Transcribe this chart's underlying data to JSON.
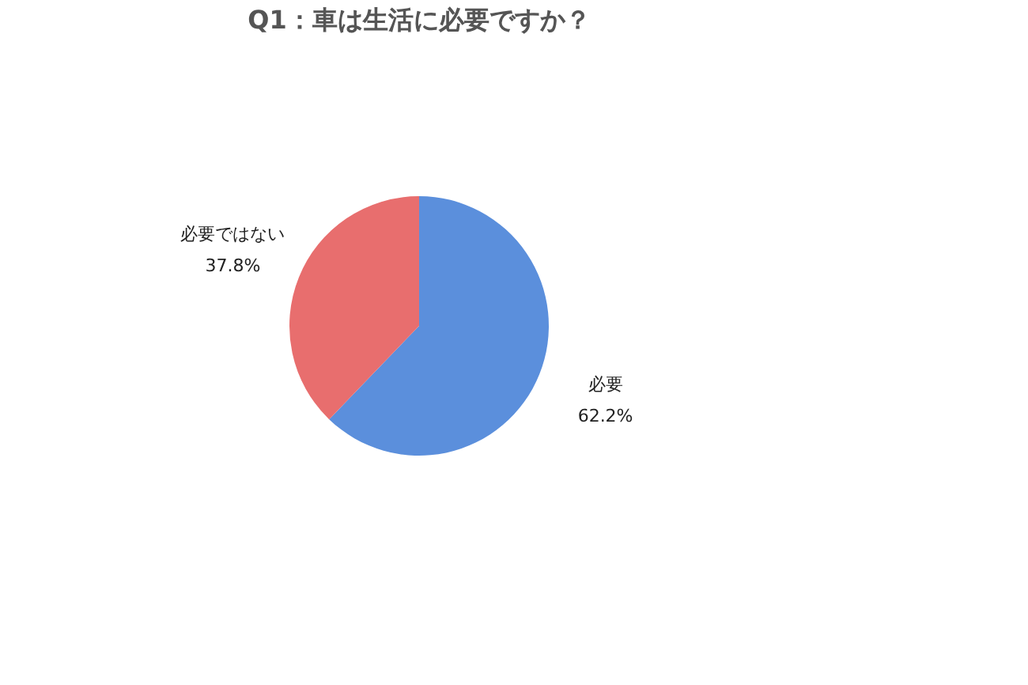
{
  "chart_data": {
    "type": "pie",
    "title": "Q1：車は生活に必要ですか？",
    "categories": [
      "必要",
      "必要ではない"
    ],
    "values": [
      62.2,
      37.8
    ],
    "value_labels": [
      "62.2%",
      "37.8%"
    ],
    "colors": [
      "#5b8fdc",
      "#e86e6e"
    ],
    "legend": false
  }
}
